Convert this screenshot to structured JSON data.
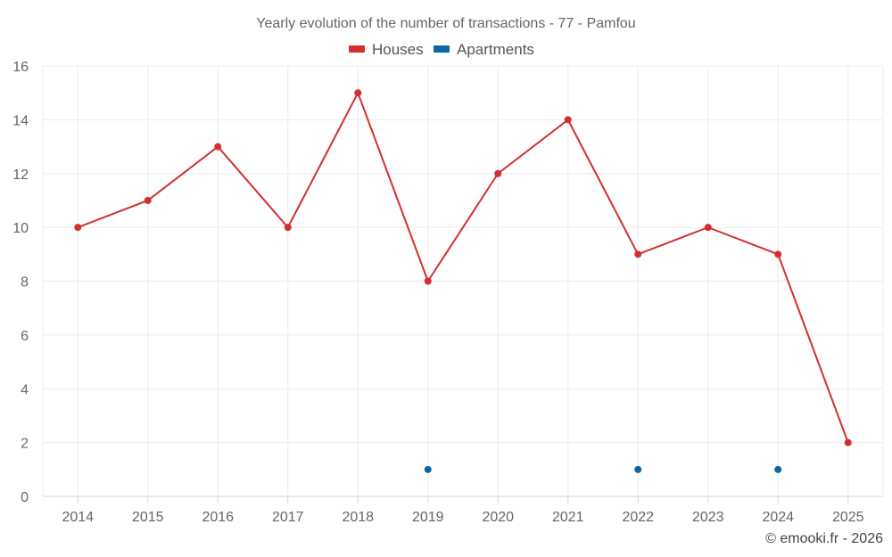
{
  "chart_data": {
    "type": "line",
    "title": "Yearly evolution of the number of transactions - 77 - Pamfou",
    "categories": [
      "2014",
      "2015",
      "2016",
      "2017",
      "2018",
      "2019",
      "2020",
      "2021",
      "2022",
      "2023",
      "2024",
      "2025"
    ],
    "series": [
      {
        "name": "Houses",
        "color": "#d32f2f",
        "values": [
          10,
          11,
          13,
          10,
          15,
          8,
          12,
          14,
          9,
          10,
          9,
          2
        ]
      },
      {
        "name": "Apartments",
        "color": "#0a67a3",
        "values": [
          null,
          null,
          null,
          null,
          null,
          1,
          null,
          null,
          1,
          null,
          1,
          null
        ]
      }
    ],
    "ylim": [
      0,
      16
    ],
    "yticks": [
      0,
      2,
      4,
      6,
      8,
      10,
      12,
      14,
      16
    ],
    "grid": true,
    "legend": "top-center",
    "xlabel": "",
    "ylabel": ""
  },
  "credit": "© emooki.fr - 2026"
}
